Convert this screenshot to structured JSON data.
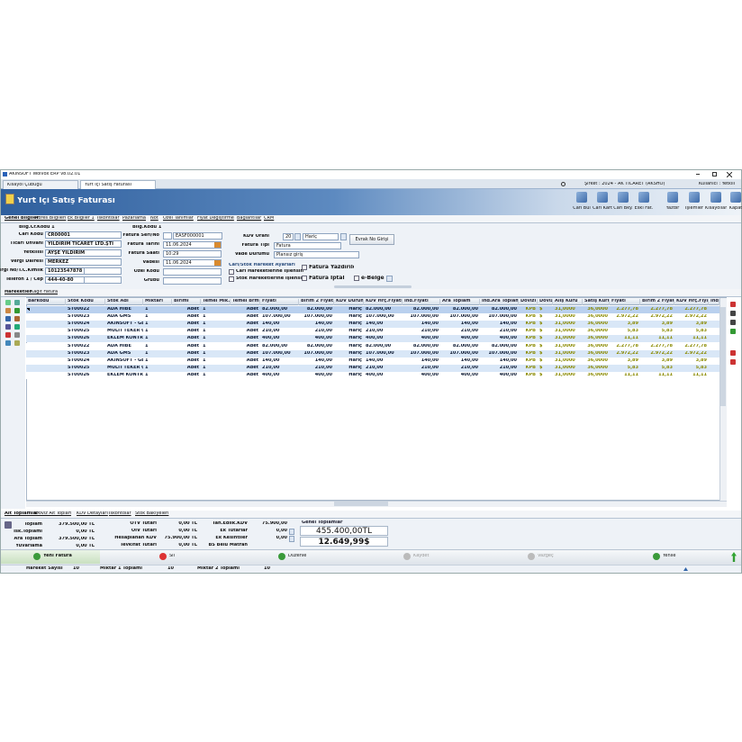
{
  "window": {
    "title": "AKINSOFT Wolvox ERP v8.02.01",
    "tabs": [
      "Kısayol Çubuğu",
      "Yurt İçi Satış Faturası"
    ],
    "company": "Şirket : 2024 - AK TİCARET (AKSHO)",
    "user": "Kullanıcı : Yetkili"
  },
  "header": {
    "title": "Yurt İçi Satış Faturası",
    "toolbar": [
      "Cari Bul",
      "Cari Kart",
      "Cari Bky.",
      "Eski Fat.",
      "Yazdır",
      "İşlemler",
      "Kısayollar",
      "Kapat"
    ]
  },
  "form_tabs": [
    "Genel Bilgiler",
    "Adres Bilgileri",
    "Ek Bilgiler 1",
    "İskontolar",
    "Pazarlama",
    "Not",
    "Özel Tanımlar",
    "Fiyat Değiştirme",
    "Bağlantılar",
    "CRM"
  ],
  "form": {
    "left": {
      "group": "Bilg.Cr.Kodu 1",
      "fields": [
        {
          "label": "Cari Kodu",
          "value": "CR00001"
        },
        {
          "label": "Ticari Ünvanı",
          "value": "YILDIRIM TİCARET LTD.ŞTİ"
        },
        {
          "label": "Yetkilisi",
          "value": "AYŞE YILDIRIM"
        },
        {
          "label": "Vergi Dairesi",
          "value": "MERKEZ"
        },
        {
          "label": "Vergi No/T.C.Kimlik",
          "value": "10123547878"
        },
        {
          "label": "Telefon 1 / Cep",
          "value": "444-40-80"
        }
      ]
    },
    "middle": {
      "group": "Bilg.Kodu 1",
      "fields": [
        {
          "label": "Fatura Seri/No",
          "value": "EASF000001"
        },
        {
          "label": "Fatura Tarihi",
          "value": "11.06.2024"
        },
        {
          "label": "Fatura Saati",
          "value": "10:29"
        },
        {
          "label": "Vadesi",
          "value": "11.06.2024"
        },
        {
          "label": "Özel Kodu"
        },
        {
          "label": "Grubu"
        }
      ]
    },
    "right": {
      "fields": [
        {
          "label": "KDV Oranı",
          "value": "20",
          "extra": "Hariç"
        },
        {
          "label": "Fatura Tipi",
          "value": "Fatura"
        },
        {
          "label": "Vade Durumu",
          "value": "Plansız giriş"
        }
      ],
      "button": "Evrak No Girişi",
      "section": "Cari/Stok Hareket Ayarları",
      "checks": [
        "Cari Hareketlerine İşlensin",
        "Stok Hareketlerine İşlensin"
      ],
      "options": [
        "Fatura Yazdırıldı",
        "Fatura İptal",
        "e-Belge"
      ]
    }
  },
  "grid": {
    "tabs": [
      "Hareketler",
      "Kağıt Fatura"
    ],
    "columns": [
      "Barkodu",
      "Stok Kodu",
      "Stok Adı",
      "Miktarı",
      "Birimi",
      "Temel Mik.",
      "Temel Brm.",
      "Fiyatı",
      "Birim 2 Fiyatı",
      "KDV Durumu",
      "KDV Hrç.Fiyatı",
      "İnd.Fiyatı",
      "Ara Toplam",
      "İnd.Ara Toplam",
      "Dövizi",
      "Döviz",
      "Alış Kuru",
      "Satış Kuru",
      "Fiyatı",
      "Birim 2 Fiyatı",
      "KDV Hrç.Fiyatı",
      "İnd.F"
    ],
    "rows": [
      [
        "ST00022",
        "ADA HİBE",
        "1",
        "Adet",
        "1",
        "Adet",
        "82.000,00",
        "82.000,00",
        "Hariç",
        "82.000,00",
        "82.000,00",
        "82.000,00",
        "82.000,00",
        "KPB",
        "$",
        "31,0000",
        "36,0000",
        "2.277,78",
        "2.277,78",
        "2.277,78"
      ],
      [
        "ST00023",
        "ADA GMS",
        "1",
        "Adet",
        "1",
        "Adet",
        "107.000,00",
        "107.000,00",
        "Hariç",
        "107.000,00",
        "107.000,00",
        "107.000,00",
        "107.000,00",
        "KPB",
        "$",
        "31,0000",
        "36,0000",
        "2.972,22",
        "2.972,22",
        "2.972,22"
      ],
      [
        "ST00024",
        "AKINSOFT - GES3/",
        "1",
        "Adet",
        "1",
        "Adet",
        "140,00",
        "140,00",
        "Hariç",
        "140,00",
        "140,00",
        "140,00",
        "140,00",
        "KPB",
        "$",
        "31,0000",
        "36,0000",
        "3,89",
        "3,89",
        "3,89"
      ],
      [
        "ST00025",
        "MULTI TEKER ÇEİ",
        "1",
        "Adet",
        "1",
        "Adet",
        "210,00",
        "210,00",
        "Hariç",
        "210,00",
        "210,00",
        "210,00",
        "210,00",
        "KPB",
        "$",
        "31,0000",
        "36,0000",
        "5,83",
        "5,83",
        "5,83"
      ],
      [
        "ST00026",
        "EKLEM KONTROL",
        "1",
        "Adet",
        "1",
        "Adet",
        "400,00",
        "400,00",
        "Hariç",
        "400,00",
        "400,00",
        "400,00",
        "400,00",
        "KPB",
        "$",
        "31,0000",
        "36,0000",
        "11,11",
        "11,11",
        "11,11"
      ],
      [
        "ST00022",
        "ADA HİBE",
        "1",
        "Adet",
        "1",
        "Adet",
        "82.000,00",
        "82.000,00",
        "Hariç",
        "82.000,00",
        "82.000,00",
        "82.000,00",
        "82.000,00",
        "KPB",
        "$",
        "31,0000",
        "36,0000",
        "2.277,78",
        "2.277,78",
        "2.277,78"
      ],
      [
        "ST00023",
        "ADA GMS",
        "1",
        "Adet",
        "1",
        "Adet",
        "107.000,00",
        "107.000,00",
        "Hariç",
        "107.000,00",
        "107.000,00",
        "107.000,00",
        "107.000,00",
        "KPB",
        "$",
        "31,0000",
        "36,0000",
        "2.972,22",
        "2.972,22",
        "2.972,22"
      ],
      [
        "ST00024",
        "AKINSOFT - GES3/",
        "1",
        "Adet",
        "1",
        "Adet",
        "140,00",
        "140,00",
        "Hariç",
        "140,00",
        "140,00",
        "140,00",
        "140,00",
        "KPB",
        "$",
        "31,0000",
        "36,0000",
        "3,89",
        "3,89",
        "3,89"
      ],
      [
        "ST00025",
        "MULTI TEKER ÇEİ",
        "1",
        "Adet",
        "1",
        "Adet",
        "210,00",
        "210,00",
        "Hariç",
        "210,00",
        "210,00",
        "210,00",
        "210,00",
        "KPB",
        "$",
        "31,0000",
        "36,0000",
        "5,83",
        "5,83",
        "5,83"
      ],
      [
        "ST00026",
        "EKLEM KONTROL",
        "1",
        "Adet",
        "1",
        "Adet",
        "400,00",
        "400,00",
        "Hariç",
        "400,00",
        "400,00",
        "400,00",
        "400,00",
        "KPB",
        "$",
        "31,0000",
        "36,0000",
        "11,11",
        "11,11",
        "11,11"
      ]
    ]
  },
  "totals": {
    "tabs": [
      "Alt Toplamlar",
      "Döviz Alt Toplam",
      "KDV Detayları",
      "İskontolar",
      "Stok Bakiyeleri"
    ],
    "col1": [
      {
        "label": "Toplam",
        "value": "379.500,00 TL"
      },
      {
        "label": "İsk.Toplamı",
        "value": "0,00 TL"
      },
      {
        "label": "Ara Toplam",
        "value": "379.500,00 TL"
      },
      {
        "label": "Yuvarlama",
        "value": "0,00 TL"
      }
    ],
    "col2": [
      {
        "label": "ÖTV Tutarı",
        "value": "0,00 TL"
      },
      {
        "label": "ÖİV Tutarı",
        "value": "0,00 TL"
      },
      {
        "label": "Hesaplanan KDV",
        "value": "75.900,00 TL"
      },
      {
        "label": "Tevkifat Tutarı",
        "value": "0,00 TL"
      }
    ],
    "col3": [
      {
        "label": "Tah.Edilk.KDV",
        "value": "75.900,00"
      },
      {
        "label": "Ek Tutarlar",
        "value": "0,00"
      },
      {
        "label": "Ek Kesintiler",
        "value": "0,00"
      },
      {
        "label": "BS Belu Matrah"
      }
    ],
    "grand": {
      "title": "Genel Toplamlar",
      "values": [
        "455.400,00TL",
        "12.649,99$"
      ]
    }
  },
  "buttons": [
    "Yeni Fatura",
    "Sil",
    "Düzenle",
    "Kaydet",
    "Vazgeç",
    "Yenile"
  ],
  "status": [
    {
      "label": "Hareket Sayısı",
      "value": "10"
    },
    {
      "label": "Miktar 1 Toplamı",
      "value": "10"
    },
    {
      "label": "Miktar 2 Toplamı",
      "value": "10"
    }
  ]
}
